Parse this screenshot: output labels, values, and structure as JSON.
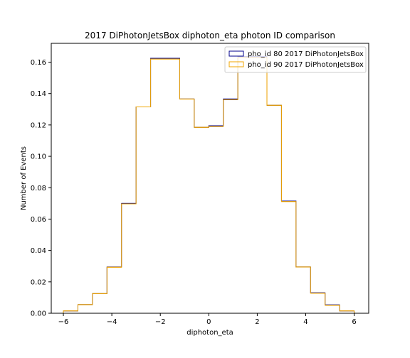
{
  "chart_data": {
    "type": "step-histogram",
    "title": "2017 DiPhotonJetsBox diphoton_eta photon ID comparison",
    "xlabel": "diphoton_eta",
    "ylabel": "Number of Events",
    "xlim": [
      -6.5,
      6.6
    ],
    "ylim": [
      0.0,
      0.172
    ],
    "xticks": [
      -6,
      -4,
      -2,
      0,
      2,
      4,
      6
    ],
    "yticks": [
      0.0,
      0.02,
      0.04,
      0.06,
      0.08,
      0.1,
      0.12,
      0.14,
      0.16
    ],
    "ytick_labels": [
      "0.00",
      "0.02",
      "0.04",
      "0.06",
      "0.08",
      "0.10",
      "0.12",
      "0.14",
      "0.16"
    ],
    "bin_edges": [
      -6.0,
      -5.4,
      -4.8,
      -4.2,
      -3.6,
      -3.0,
      -2.4,
      -1.8,
      -1.2,
      -0.6,
      0.0,
      0.6,
      1.2,
      1.8,
      2.4,
      3.0,
      3.6,
      4.2,
      4.8,
      5.4,
      6.0
    ],
    "series": [
      {
        "name": "pho_id 80 2017 DiPhotonJetsBox",
        "color": "#00008b",
        "values": [
          0.0015,
          0.0055,
          0.0125,
          0.0295,
          0.07,
          0.1315,
          0.1625,
          0.1625,
          0.1365,
          0.1185,
          0.1195,
          0.1365,
          0.1635,
          0.1635,
          0.1325,
          0.0715,
          0.0295,
          0.013,
          0.0053,
          0.0015
        ]
      },
      {
        "name": "pho_id 90 2017 DiPhotonJetsBox",
        "color": "#f0a500",
        "values": [
          0.0015,
          0.0055,
          0.0125,
          0.0293,
          0.0697,
          0.1315,
          0.162,
          0.162,
          0.1365,
          0.1185,
          0.119,
          0.136,
          0.163,
          0.163,
          0.1325,
          0.0712,
          0.0295,
          0.0128,
          0.0051,
          0.0015
        ]
      }
    ],
    "legend_position": "top-right",
    "grid": false
  }
}
